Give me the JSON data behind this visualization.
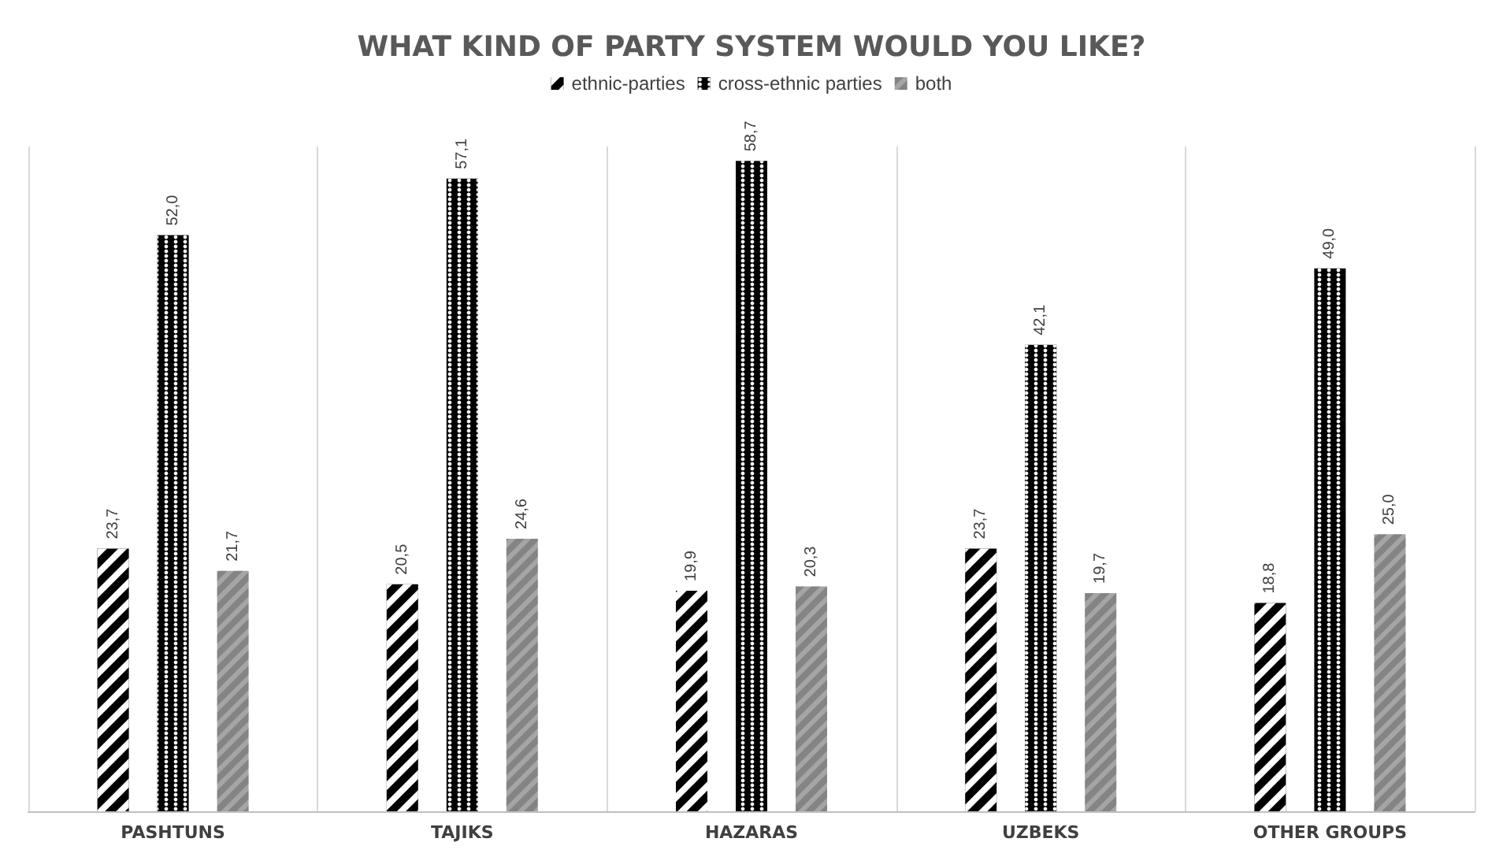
{
  "chart_data": {
    "type": "bar",
    "title": "WHAT KIND OF PARTY SYSTEM WOULD YOU LIKE?",
    "categories": [
      "PASHTUNS",
      "TAJIKS",
      "HAZARAS",
      "UZBEKS",
      "OTHER GROUPS"
    ],
    "series": [
      {
        "name": "ethnic-parties",
        "color": "#000000",
        "values": [
          23.7,
          20.5,
          19.9,
          23.7,
          18.8
        ],
        "value_labels": [
          "23,7",
          "20,5",
          "19,9",
          "23,7",
          "18,8"
        ]
      },
      {
        "name": "cross-ethnic parties",
        "color": "#000000",
        "values": [
          52.0,
          57.1,
          58.7,
          42.1,
          49.0
        ],
        "value_labels": [
          "52,0",
          "57,1",
          "58,7",
          "42,1",
          "49,0"
        ]
      },
      {
        "name": "both",
        "color": "#a5a5a5",
        "values": [
          21.7,
          24.6,
          20.3,
          19.7,
          25.0
        ],
        "value_labels": [
          "21,7",
          "24,6",
          "20,3",
          "19,7",
          "25,0"
        ]
      }
    ],
    "legend": "top",
    "grid": "x"
  }
}
